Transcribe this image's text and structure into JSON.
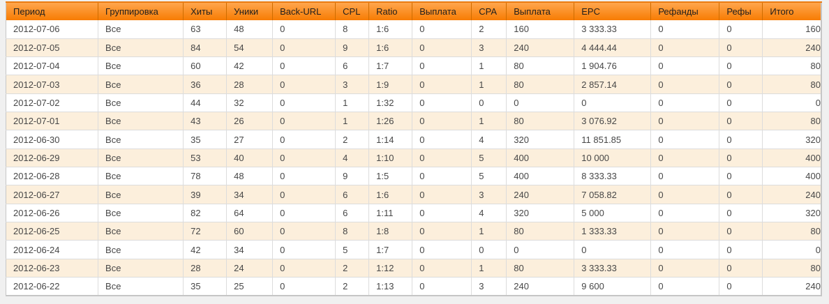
{
  "colors": {
    "page_background": "#f0f0f0",
    "header_gradient_top": "#ffa64d",
    "header_gradient_bottom": "#f77c02",
    "header_top_border": "#ea7c12",
    "header_divider": "#cf6d00",
    "header_text": "#1f1e1d",
    "row_background": "#ffffff",
    "row_alt_background": "#fcefdc",
    "grid_line": "#dcdcdc",
    "outer_border": "#c6c6c6",
    "body_text": "#474747"
  },
  "table": {
    "columns": [
      {
        "key": "period",
        "label": "Период"
      },
      {
        "key": "grouping",
        "label": "Группировка"
      },
      {
        "key": "hits",
        "label": "Хиты"
      },
      {
        "key": "uniques",
        "label": "Уники"
      },
      {
        "key": "back_url",
        "label": "Back-URL"
      },
      {
        "key": "cpl",
        "label": "CPL"
      },
      {
        "key": "ratio",
        "label": "Ratio"
      },
      {
        "key": "payout_cpl",
        "label": "Выплата"
      },
      {
        "key": "cpa",
        "label": "CPA"
      },
      {
        "key": "payout_cpa",
        "label": "Выплата"
      },
      {
        "key": "epc",
        "label": "EPC"
      },
      {
        "key": "refunds",
        "label": "Рефанды"
      },
      {
        "key": "refs",
        "label": "Рефы"
      },
      {
        "key": "total",
        "label": "Итого"
      }
    ],
    "rows": [
      [
        "2012-07-06",
        "Все",
        "63",
        "48",
        "0",
        "8",
        "1:6",
        "0",
        "2",
        "160",
        "3 333.33",
        "0",
        "0",
        "160"
      ],
      [
        "2012-07-05",
        "Все",
        "84",
        "54",
        "0",
        "9",
        "1:6",
        "0",
        "3",
        "240",
        "4 444.44",
        "0",
        "0",
        "240"
      ],
      [
        "2012-07-04",
        "Все",
        "60",
        "42",
        "0",
        "6",
        "1:7",
        "0",
        "1",
        "80",
        "1 904.76",
        "0",
        "0",
        "80"
      ],
      [
        "2012-07-03",
        "Все",
        "36",
        "28",
        "0",
        "3",
        "1:9",
        "0",
        "1",
        "80",
        "2 857.14",
        "0",
        "0",
        "80"
      ],
      [
        "2012-07-02",
        "Все",
        "44",
        "32",
        "0",
        "1",
        "1:32",
        "0",
        "0",
        "0",
        "0",
        "0",
        "0",
        "0"
      ],
      [
        "2012-07-01",
        "Все",
        "43",
        "26",
        "0",
        "1",
        "1:26",
        "0",
        "1",
        "80",
        "3 076.92",
        "0",
        "0",
        "80"
      ],
      [
        "2012-06-30",
        "Все",
        "35",
        "27",
        "0",
        "2",
        "1:14",
        "0",
        "4",
        "320",
        "11 851.85",
        "0",
        "0",
        "320"
      ],
      [
        "2012-06-29",
        "Все",
        "53",
        "40",
        "0",
        "4",
        "1:10",
        "0",
        "5",
        "400",
        "10 000",
        "0",
        "0",
        "400"
      ],
      [
        "2012-06-28",
        "Все",
        "78",
        "48",
        "0",
        "9",
        "1:5",
        "0",
        "5",
        "400",
        "8 333.33",
        "0",
        "0",
        "400"
      ],
      [
        "2012-06-27",
        "Все",
        "39",
        "34",
        "0",
        "6",
        "1:6",
        "0",
        "3",
        "240",
        "7 058.82",
        "0",
        "0",
        "240"
      ],
      [
        "2012-06-26",
        "Все",
        "82",
        "64",
        "0",
        "6",
        "1:11",
        "0",
        "4",
        "320",
        "5 000",
        "0",
        "0",
        "320"
      ],
      [
        "2012-06-25",
        "Все",
        "72",
        "60",
        "0",
        "8",
        "1:8",
        "0",
        "1",
        "80",
        "1 333.33",
        "0",
        "0",
        "80"
      ],
      [
        "2012-06-24",
        "Все",
        "42",
        "34",
        "0",
        "5",
        "1:7",
        "0",
        "0",
        "0",
        "0",
        "0",
        "0",
        "0"
      ],
      [
        "2012-06-23",
        "Все",
        "28",
        "24",
        "0",
        "2",
        "1:12",
        "0",
        "1",
        "80",
        "3 333.33",
        "0",
        "0",
        "80"
      ],
      [
        "2012-06-22",
        "Все",
        "35",
        "25",
        "0",
        "2",
        "1:13",
        "0",
        "3",
        "240",
        "9 600",
        "0",
        "0",
        "240"
      ]
    ]
  }
}
